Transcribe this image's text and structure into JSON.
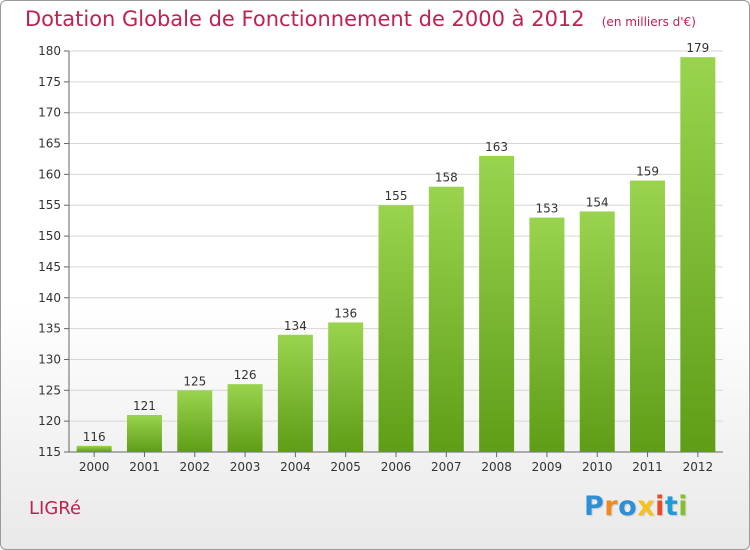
{
  "title": "Dotation Globale de Fonctionnement de 2000 à 2012",
  "unit": "(en milliers d'€)",
  "commune": "LIGRé",
  "logo": {
    "letters": [
      "P",
      "r",
      "o",
      "x",
      "i",
      "t",
      "i"
    ],
    "colors": [
      "#2d8fd6",
      "#f08a1c",
      "#2d8fd6",
      "#f4c21b",
      "#ea4a29",
      "#1f9bd8",
      "#86bf2e"
    ]
  },
  "colors": {
    "title": "#c0224e",
    "bar_light": "#9ad44f",
    "bar_dark": "#5f9d17",
    "grid": "#d6d6d6"
  },
  "chart_data": {
    "type": "bar",
    "categories": [
      "2000",
      "2001",
      "2002",
      "2003",
      "2004",
      "2005",
      "2006",
      "2007",
      "2008",
      "2009",
      "2010",
      "2011",
      "2012"
    ],
    "values": [
      116,
      121,
      125,
      126,
      134,
      136,
      155,
      158,
      163,
      153,
      154,
      159,
      179
    ],
    "ylim": [
      115,
      180
    ],
    "yticks": [
      115,
      120,
      125,
      130,
      135,
      140,
      145,
      150,
      155,
      160,
      165,
      170,
      175,
      180
    ],
    "grid": true,
    "data_labels": true
  }
}
